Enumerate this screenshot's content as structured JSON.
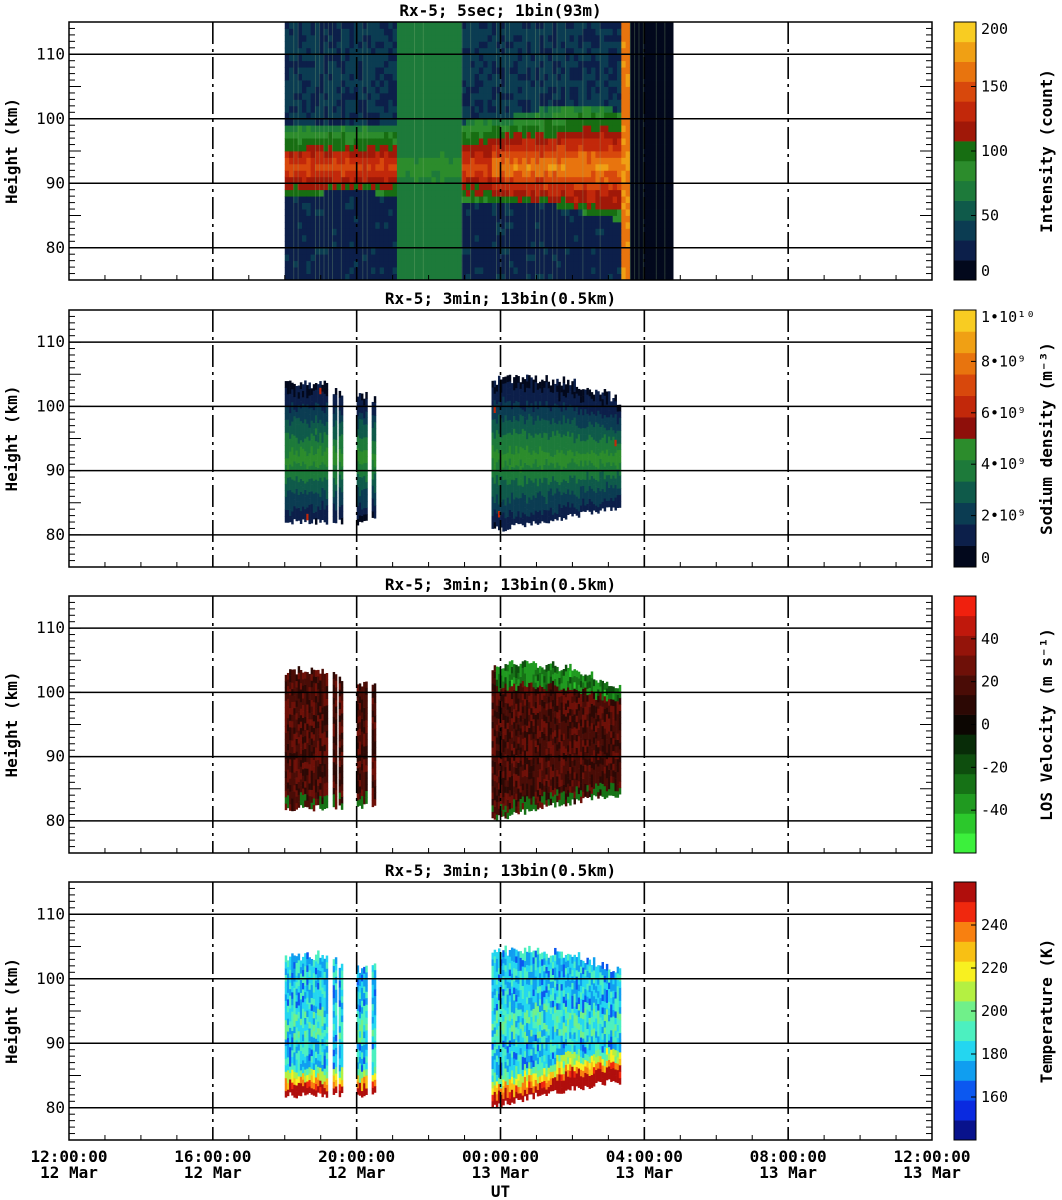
{
  "figure": {
    "xlabel": "UT",
    "x_ticks": [
      {
        "time": "12:00:00",
        "date": "12 Mar"
      },
      {
        "time": "16:00:00",
        "date": "12 Mar"
      },
      {
        "time": "20:00:00",
        "date": "12 Mar"
      },
      {
        "time": "00:00:00",
        "date": "13 Mar"
      },
      {
        "time": "04:00:00",
        "date": "13 Mar"
      },
      {
        "time": "08:00:00",
        "date": "13 Mar"
      },
      {
        "time": "12:00:00",
        "date": "13 Mar"
      }
    ]
  },
  "chart_data": [
    {
      "type": "heatmap",
      "title": "Rx-5;  5sec; 1bin(93m)",
      "ylabel": "Height (km)",
      "xlim": [
        "2023-03-12 12:00",
        "2023-03-13 12:00"
      ],
      "ylim": [
        75,
        115
      ],
      "y_ticks": [
        80,
        90,
        100,
        110
      ],
      "colorbar": {
        "label": "Intensity (count)",
        "range": [
          0,
          200
        ],
        "ticks": [
          "0",
          "50",
          "100",
          "150",
          "200"
        ],
        "colors": [
          "#02081c",
          "#0c1f4a",
          "#0b3c52",
          "#0f5a4a",
          "#1d7a3a",
          "#2c8c2c",
          "#176e12",
          "#a01808",
          "#c2280a",
          "#d8480c",
          "#e8740e",
          "#f0a014",
          "#f8cc22"
        ]
      },
      "data_extent": {
        "x": [
          "2023-03-12 18:00",
          "2023-03-13 04:45"
        ],
        "y": [
          75,
          115
        ]
      },
      "layer_bottom": [
        [
          "18:00",
          87.5
        ],
        [
          "19:00",
          88
        ],
        [
          "20:00",
          88.5
        ],
        [
          "21:00",
          87.5
        ],
        [
          "22:00",
          87
        ],
        [
          "23:00",
          87
        ],
        [
          "00:00",
          87
        ],
        [
          "00:30",
          86.5
        ],
        [
          "01:00",
          86.5
        ],
        [
          "01:30",
          86
        ],
        [
          "02:00",
          85.5
        ],
        [
          "02:30",
          84.5
        ],
        [
          "03:00",
          84
        ],
        [
          "03:20",
          84
        ]
      ],
      "layer_top": [
        [
          "18:00",
          98
        ],
        [
          "19:00",
          98.5
        ],
        [
          "20:00",
          98.5
        ],
        [
          "21:00",
          98
        ],
        [
          "22:00",
          98
        ],
        [
          "23:00",
          99
        ],
        [
          "00:00",
          99.5
        ],
        [
          "00:30",
          100.5
        ],
        [
          "01:00",
          101
        ],
        [
          "02:00",
          101.5
        ],
        [
          "03:00",
          101
        ],
        [
          "03:20",
          100.5
        ]
      ],
      "peak_height_km": 92
    },
    {
      "type": "heatmap",
      "title": "Rx-5; 3min; 13bin(0.5km)",
      "ylabel": "Height (km)",
      "xlim": [
        "2023-03-12 12:00",
        "2023-03-13 12:00"
      ],
      "ylim": [
        75,
        115
      ],
      "y_ticks": [
        80,
        90,
        100,
        110
      ],
      "colorbar": {
        "label": "Sodium density (m⁻³)",
        "range": [
          0,
          10000000000.0
        ],
        "ticks": [
          "0",
          "2•10⁹",
          "4•10⁹",
          "6•10⁹",
          "8•10⁹",
          "1•10¹⁰"
        ],
        "colors": [
          "#02081c",
          "#0c1f4a",
          "#0b3c52",
          "#0f5a4a",
          "#1d7a3a",
          "#2c8c2c",
          "#8e0f0a",
          "#c2280a",
          "#d8480c",
          "#e8740e",
          "#f0a014",
          "#f8cc22"
        ]
      },
      "data_segments": [
        [
          "18:00",
          "19:10"
        ],
        [
          "19:20",
          "19:25"
        ],
        [
          "19:30",
          "19:35"
        ],
        [
          "20:00",
          "20:15"
        ],
        [
          "20:25",
          "20:30"
        ],
        [
          "23:45",
          "03:20"
        ]
      ],
      "layer_bottom": [
        [
          "18:00",
          82
        ],
        [
          "19:00",
          82
        ],
        [
          "20:00",
          82
        ],
        [
          "20:30",
          82.5
        ],
        [
          "23:45",
          81
        ],
        [
          "00:00",
          81
        ],
        [
          "01:00",
          82
        ],
        [
          "02:00",
          83
        ],
        [
          "03:00",
          84
        ],
        [
          "03:20",
          84
        ]
      ],
      "layer_top": [
        [
          "18:00",
          103
        ],
        [
          "19:00",
          103
        ],
        [
          "20:00",
          101
        ],
        [
          "20:30",
          101
        ],
        [
          "23:45",
          103
        ],
        [
          "00:00",
          104
        ],
        [
          "01:00",
          104
        ],
        [
          "02:00",
          103
        ],
        [
          "03:00",
          101
        ],
        [
          "03:20",
          100.5
        ]
      ],
      "peak_height_km": 91.5
    },
    {
      "type": "heatmap",
      "title": "Rx-5; 3min; 13bin(0.5km)",
      "ylabel": "Height (km)",
      "xlim": [
        "2023-03-12 12:00",
        "2023-03-13 12:00"
      ],
      "ylim": [
        75,
        115
      ],
      "y_ticks": [
        80,
        90,
        100,
        110
      ],
      "colorbar": {
        "label": "LOS Velocity (m s⁻¹)",
        "range": [
          -50,
          50
        ],
        "ticks": [
          "-40",
          "-20",
          "0",
          "20",
          "40"
        ],
        "colors": [
          "#3cf03c",
          "#2cc82c",
          "#209a20",
          "#167216",
          "#0e4e0e",
          "#082c08",
          "#0c0602",
          "#2c0804",
          "#4a0c06",
          "#6e1008",
          "#94140a",
          "#c0180c",
          "#f0200e"
        ]
      },
      "data_segments": [
        [
          "18:00",
          "19:10"
        ],
        [
          "19:20",
          "19:25"
        ],
        [
          "19:30",
          "19:35"
        ],
        [
          "20:00",
          "20:15"
        ],
        [
          "20:25",
          "20:30"
        ],
        [
          "23:45",
          "03:20"
        ]
      ],
      "layer_bottom": [
        [
          "18:00",
          82
        ],
        [
          "19:00",
          82
        ],
        [
          "20:00",
          82
        ],
        [
          "20:30",
          82.5
        ],
        [
          "23:45",
          80.5
        ],
        [
          "00:00",
          80.5
        ],
        [
          "01:00",
          82
        ],
        [
          "02:00",
          83
        ],
        [
          "03:00",
          84
        ],
        [
          "03:20",
          84
        ]
      ],
      "layer_top": [
        [
          "18:00",
          103
        ],
        [
          "19:00",
          103
        ],
        [
          "20:00",
          101
        ],
        [
          "20:30",
          101
        ],
        [
          "23:45",
          103
        ],
        [
          "00:00",
          104
        ],
        [
          "01:00",
          104
        ],
        [
          "02:00",
          103
        ],
        [
          "03:00",
          101
        ],
        [
          "03:20",
          100.5
        ]
      ]
    },
    {
      "type": "heatmap",
      "title": "Rx-5; 3min; 13bin(0.5km)",
      "ylabel": "Height (km)",
      "xlim": [
        "2023-03-12 12:00",
        "2023-03-13 12:00"
      ],
      "ylim": [
        75,
        115
      ],
      "y_ticks": [
        80,
        90,
        100,
        110
      ],
      "colorbar": {
        "label": "Temperature (K)",
        "range": [
          150,
          250
        ],
        "ticks": [
          "160",
          "180",
          "200",
          "220",
          "240"
        ],
        "colors": [
          "#08128c",
          "#0a2ae0",
          "#0c58f0",
          "#109ef0",
          "#24d6f0",
          "#4cf0c0",
          "#70f08a",
          "#b4f042",
          "#f8f020",
          "#f8c014",
          "#f88010",
          "#f0280e",
          "#b00e0c"
        ]
      },
      "data_segments": [
        [
          "18:00",
          "19:10"
        ],
        [
          "19:20",
          "19:25"
        ],
        [
          "19:30",
          "19:35"
        ],
        [
          "20:00",
          "20:15"
        ],
        [
          "20:25",
          "20:30"
        ],
        [
          "23:45",
          "03:20"
        ]
      ],
      "layer_bottom": [
        [
          "18:00",
          82
        ],
        [
          "19:00",
          82
        ],
        [
          "20:00",
          82
        ],
        [
          "20:30",
          82.5
        ],
        [
          "23:45",
          80.5
        ],
        [
          "00:00",
          80.5
        ],
        [
          "01:00",
          82
        ],
        [
          "02:00",
          83
        ],
        [
          "03:00",
          84
        ],
        [
          "03:20",
          84
        ]
      ],
      "layer_top": [
        [
          "18:00",
          103
        ],
        [
          "19:00",
          103
        ],
        [
          "20:00",
          101
        ],
        [
          "20:30",
          101
        ],
        [
          "23:45",
          103
        ],
        [
          "00:00",
          104
        ],
        [
          "01:00",
          104
        ],
        [
          "02:00",
          103
        ],
        [
          "03:00",
          101
        ],
        [
          "03:20",
          100.5
        ]
      ]
    }
  ]
}
